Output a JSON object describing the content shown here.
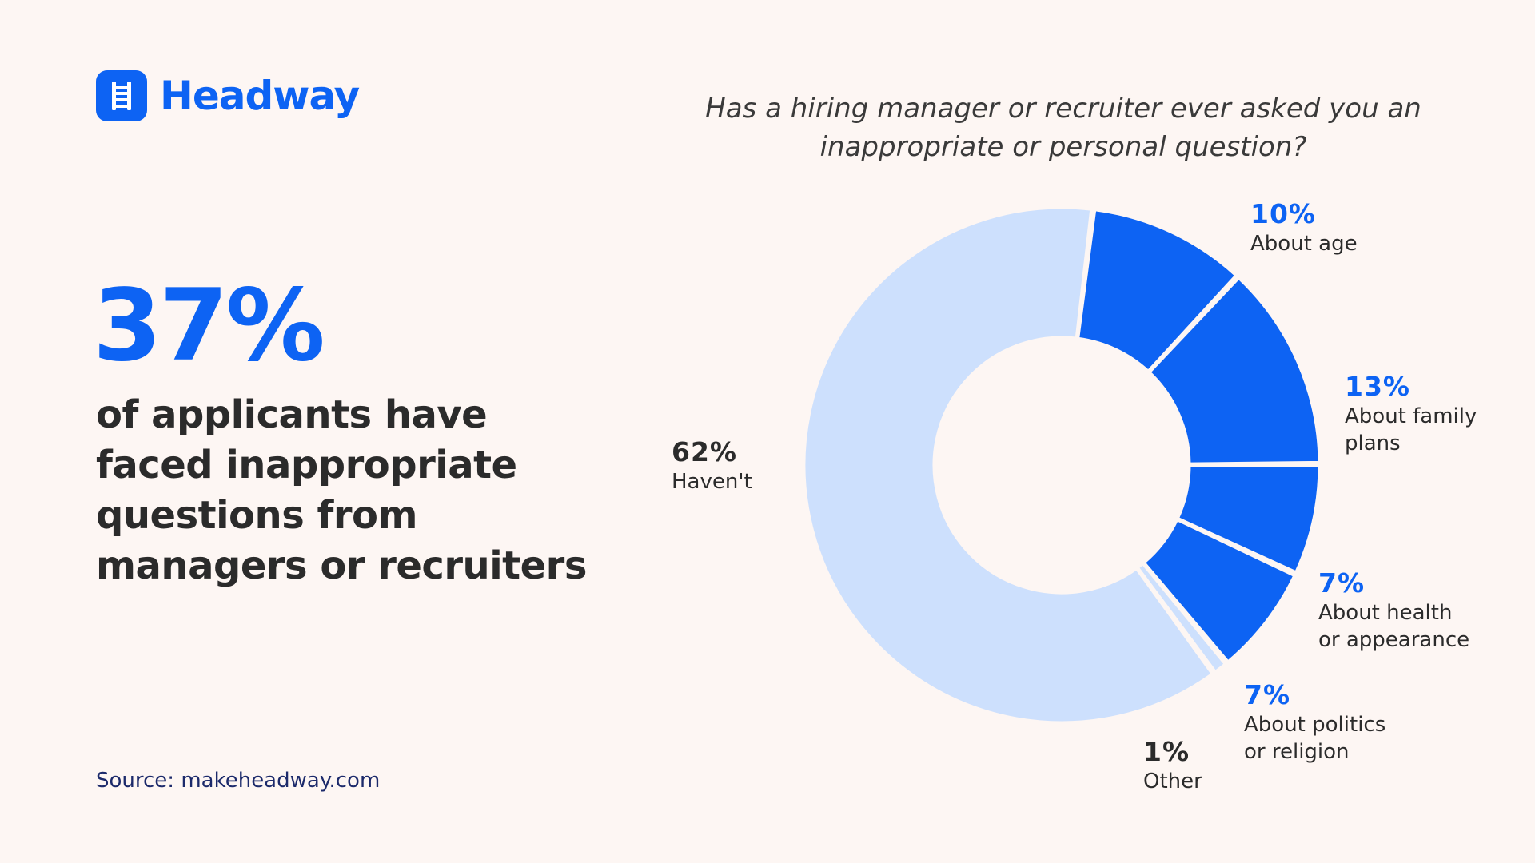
{
  "brand": {
    "name": "Headway",
    "logo_icon": "ladder-icon",
    "color": "#0d63f3"
  },
  "highlight": {
    "value": "37%",
    "text": "of applicants have faced inappropriate questions from managers or recruiters"
  },
  "source": "Source: makeheadway.com",
  "colors": {
    "accent": "#0d63f3",
    "muted": "#cde0fd",
    "background": "#fdf6f3"
  },
  "chart_data": {
    "type": "pie",
    "donut": true,
    "title": "Has a hiring manager or recruiter ever asked you an inappropriate or personal question?",
    "slices": [
      {
        "label": "About age",
        "value": 10,
        "display": "10%",
        "color": "#0d63f3"
      },
      {
        "label": "About family\nplans",
        "value": 13,
        "display": "13%",
        "color": "#0d63f3"
      },
      {
        "label": "About health\nor appearance",
        "value": 7,
        "display": "7%",
        "color": "#0d63f3"
      },
      {
        "label": "About politics\nor religion",
        "value": 7,
        "display": "7%",
        "color": "#0d63f3"
      },
      {
        "label": "Other",
        "value": 1,
        "display": "1%",
        "color": "#cde0fd"
      },
      {
        "label": "Haven't",
        "value": 62,
        "display": "62%",
        "color": "#cde0fd"
      }
    ]
  }
}
